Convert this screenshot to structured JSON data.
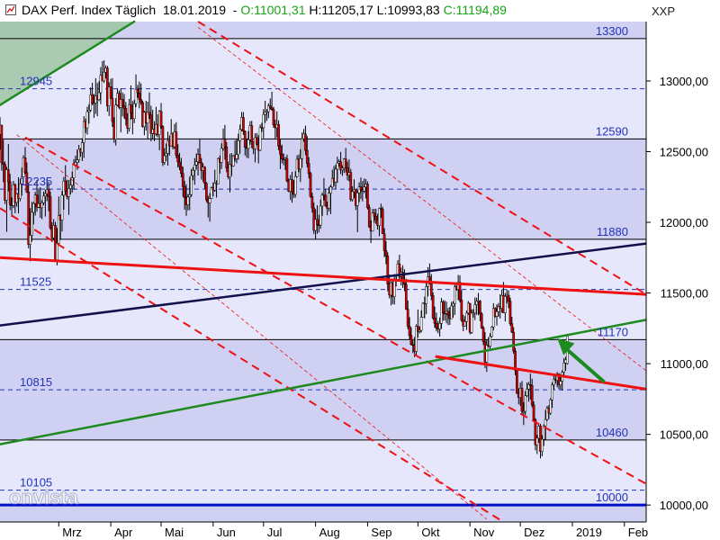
{
  "header": {
    "title": "DAX Perf. Index Täglich",
    "date": "18.01.2019",
    "open": "O:11001,31",
    "high": "H:11205,17",
    "low": "L:10993,83",
    "close": "C:11194,89",
    "symbol": "XXP"
  },
  "watermark": "onvista",
  "colors": {
    "background": "#ffffff",
    "band_dark": "#cfd0f2",
    "band_light": "#e6e7fa",
    "candle_up": "#ffffff",
    "candle_down": "#d00000",
    "resistance_red": "#ee1111",
    "channel_red": "#ee1111",
    "trend_green": "#1d8a1d",
    "trend_navy": "#10104a",
    "level_line": "#000000",
    "dashed_level": "#2233bb",
    "support_blue": "#0010c8",
    "arrow_green": "#1d8a1d"
  },
  "chart_data": {
    "type": "candlestick",
    "title": "DAX Perf. Index Täglich",
    "y_axis": {
      "min": 9880,
      "max": 13420,
      "ticks": [
        10000,
        10500,
        11000,
        11500,
        12000,
        12500,
        13000
      ],
      "tick_labels": [
        "10000,00",
        "10500,00",
        "11000,00",
        "11500,00",
        "12000,00",
        "12500,00",
        "13000,00"
      ]
    },
    "x_axis": {
      "labels": [
        "Mrz",
        "Apr",
        "Mai",
        "Jun",
        "Jul",
        "Aug",
        "Sep",
        "Okt",
        "Nov",
        "Dez",
        "2019",
        "Feb"
      ],
      "label_day_index": [
        45,
        76,
        106,
        137,
        167,
        198,
        229,
        259,
        290,
        320,
        351,
        382
      ],
      "visible_days": [
        10,
        395
      ]
    },
    "level_lines": [
      {
        "value": 13300,
        "label": "13300",
        "style": "solid"
      },
      {
        "value": 12945,
        "label": "12945",
        "style": "dashed"
      },
      {
        "value": 12590,
        "label": "12590",
        "style": "solid"
      },
      {
        "value": 12235,
        "label": "12235",
        "style": "dashed"
      },
      {
        "value": 11880,
        "label": "11880",
        "style": "solid"
      },
      {
        "value": 11525,
        "label": "11525",
        "style": "dashed"
      },
      {
        "value": 11170,
        "label": "11170",
        "style": "solid"
      },
      {
        "value": 10815,
        "label": "10815",
        "style": "dashed"
      },
      {
        "value": 10460,
        "label": "10460",
        "style": "solid"
      },
      {
        "value": 10105,
        "label": "10105",
        "style": "dashed"
      },
      {
        "value": 10000,
        "label": "10000",
        "style": "support"
      }
    ],
    "trend_lines": [
      {
        "name": "upper green",
        "color": "trend_green",
        "width": 2.5,
        "points": [
          [
            10,
            12830
          ],
          [
            90,
            13420
          ]
        ]
      },
      {
        "name": "lower green",
        "color": "trend_green",
        "width": 2.5,
        "points": [
          [
            10,
            10430
          ],
          [
            395,
            11310
          ]
        ]
      },
      {
        "name": "navy",
        "color": "trend_navy",
        "width": 2.5,
        "points": [
          [
            10,
            11270
          ],
          [
            395,
            11850
          ]
        ]
      },
      {
        "name": "red resistance",
        "color": "resistance_red",
        "width": 3,
        "points": [
          [
            10,
            11750
          ],
          [
            395,
            11490
          ]
        ]
      },
      {
        "name": "red short",
        "color": "resistance_red",
        "width": 3,
        "points": [
          [
            270,
            11050
          ],
          [
            395,
            10820
          ]
        ]
      }
    ],
    "channel_lines": [
      {
        "style": "dashed",
        "points": [
          [
            128,
            13420
          ],
          [
            395,
            11490
          ]
        ]
      },
      {
        "style": "dashed",
        "points": [
          [
            25,
            12600
          ],
          [
            395,
            10150
          ]
        ]
      },
      {
        "style": "dashed",
        "points": [
          [
            10,
            12100
          ],
          [
            310,
            9880
          ]
        ]
      },
      {
        "style": "thin",
        "points": [
          [
            128,
            13380
          ],
          [
            395,
            10950
          ]
        ]
      },
      {
        "style": "thin",
        "points": [
          [
            20,
            12620
          ],
          [
            300,
            9900
          ]
        ]
      }
    ],
    "arrow": {
      "from": [
        370,
        10870
      ],
      "to": [
        342,
        11180
      ]
    },
    "candles_compact": "10,12622,12744,12514,12688;11,12688,12688,12366,12421;12,12421,12584,12284,12409;13,12409,12431,12129,12156;14,12156,12393,11933,12372;15,12372,12554,12218,12287;16,12287,12343,12087,12126;17,12126,12176,12038,12119;18,12119,12292,12101,12266;19,12266,12276,12064,12141;20,12141,12208,12111,12202;21,12202,12318,12063,12168;22,12168,12309,12149,12273;23,12273,12387,12189,12321;24,12321,12474,12315,12457;25,12457,12533,12341,12352;26,12352,12424,12208,12215;27,12215,12278,11816,11844;28,11844,12101,11724,11908;29,11908,12145,11863,12071;30,12071,12145,11985,12133;31,12133,12215,12048,12193;32,12193,12299,12075,12107;33,12107,12240,12101,12132;34,12132,12248,12032,12103;35,12103,12156,12023,12138;36,12138,12218,12121,12186;37,12186,12230,12041,12203;38,12203,12311,12149,12233;39,12233,12286,12079,12181;40,12181,12218,11948,11962;41,11962,12001,11860,11891;42,11891,12023,11871,11978;43,11978,12003,11732,11735;44,11735,11960,11695,11852;45,11852,12183,11844,12049;46,12049,12057,11879,12016;47,12016,12222,11935,12192;48,12192,12321,12089,12292;49,12292,12404,12194,12222;50,12222,12301,12162,12182;51,12182,12300,12053,12239;52,12239,12316,12197,12263;53,12263,12358,12210,12314;54,12314,12447,12231,12407;55,12407,12471,12405,12424;56,12424,12514,12371,12441;57,12441,12548,12423,12516;58,12516,12525,12464,12496;59,12496,12595,12433,12563;60,12563,12751,12455,12713;61,12713,12735,12632,12668;62,12668,12818,12620,12783;63,12783,12836,12698,12794;64,12794,12955,12780,12901;65,12901,12987,12828,12841;66,12841,12909,12739,12843;67,12843,13019,12767,12893;68,12893,12986,12750,12868;69,12868,12998,12858,12917;70,12917,13098,12836,13040;71,13040,13140,12998,13000;72,13000,13146,12986,13062;73,13062,13110,13017,13091;74,13091,13107,12784,12824;75,12824,12991,12752,12958;76,12958,13015,12874,12878;77,12878,13020,12675,12714;78,12714,12744,12562,12588;79,12588,12878,12543,12829;80,12829,12946,12820,12912;81,12912,12932,12800,12813;82,12813,12949,12636,12869;83,12869,12919,12750,12824;84,12824,12908,12735,12807;85,12807,12852,12685,12731;86,12731,12772,12626,12665;87,12665,12873,12642,12832;88,12832,12968,12727,12774;89,12774,12858,12623,12734;90,12734,12867,12701,12840;91,12840,13046,12815,12942;92,12942,12972,12881,12915;93,12915,12996,12807,12869;94,12869,12983,12831,12847;95,12847,12861,12670,12677;96,12677,12790,12616,12778;97,12778,12860,12649,12702;98,12702,12853,12587,12778;99,12778,12919,12732,12760;100,12760,12825,12573,12629;101,12629,12796,12590,12659;102,12659,12715,12573,12626;103,12626,12817,12609,12693;104,12693,12764,12601,12620;105,12620,12795,12510,12785;106,12785,12844,12662,12678;107,12678,12686,12398,12423;108,12423,12524,12407,12471;109,12471,12558,12433,12488;110,12488,12641,12401,12577;111,12577,12615,12472,12541;112,12541,12730,12537,12625;113,12625,12636,12516,12535;114,12535,12696,12519,12640;115,12640,12708,12453,12476;116,12476,12553,12387,12427;117,12427,12491,12369,12395;118,12395,12456,12318,12346;119,12346,12393,12179,12252;120,12252,12294,12089,12174;121,12174,12269,12046,12124;122,12124,12200,12084,12179;123,12179,12323,12086,12195;124,12195,12378,12179,12331;125,12331,12391,12297,12368;126,12368,12454,12266,12406;127,12406,12487,12373,12429;128,12429,12522,12331,12481;129,12481,12591,12416,12423;130,12423,12455,12303,12367;131,12367,12418,12285,12390;132,12390,12397,12238,12275;133,12275,12285,12143,12159;134,12159,12188,12034,12137;135,12137,12207,12005,12169;136,12169,12253,12166,12244;137,12244,12283,12185,12228;138,12228,12372,12216,12278;139,12278,12298,12175,12272;140,12272,12458,12272,12451;141,12451,12473,12345,12424;142,12424,12559,12377,12523;143,12523,12663,12507,12588;144,12588,12689,12443,12533;145,12533,12567,12355,12384;146,12384,12429,12305,12321;147,12321,12485,12212,12409;148,12409,12490,12327,12398;149,12398,12477,12393,12470;150,12470,12579,12429,12450;151,12450,12589,12418,12480;152,12480,12627,12443,12578;153,12578,12692,12486,12658;154,12658,12781,12643,12742;155,12742,12780,12619,12644;156,12644,12650,12473,12530;157,12530,12593,12457,12523;158,12523,12646,12453,12585;159,12585,12715,12549,12684;160,12684,12718,12525,12572;161,12572,12575,12482,12521;162,12521,12630,12424,12599;163,12599,12632,12544,12553;164,12553,12617,12417,12510;165,12510,12692,12504,12672;166,12672,12704,12640,12669;167,12669,12801,12596,12763;168,12763,12860,12703,12781;169,12781,12801,12718,12783;170,12783,12842,12737,12823;171,12823,12876,12797,12809;172,12809,12924,12790,12798;173,12798,12817,12669,12689;174,12689,12727,12586,12669;175,12669,12785,12600,12692;176,12692,12721,12510,12539;177,12539,12585,12377,12482;178,12482,12550,12417,12447;179,12447,12488,12404,12443;180,12443,12462,12370,12452;181,12452,12479,12284,12293;182,12293,12310,12213,12219;183,12219,12335,12158,12303;184,12303,12357,12139,12216;185,12216,12299,12172,12198;186,12198,12362,12175,12324;187,12324,12474,12318,12446;188,12446,12480,12355,12377;189,12377,12517,12285,12451;190,12451,12635,12387,12591;191,12591,12660,12570,12625;192,12625,12684,12475,12509;193,12509,12610,12388,12417;194,12417,12461,12311,12345;195,12345,12358,12175,12183;196,12183,12210,12069,12102;197,12102,12141,11918,11943;198,11943,12093,11877,12020;199,12020,12120,11919,11983;200,11983,12053,11929,11980;201,11980,12162,11954,12115;202,12115,12210,12046,12193;203,12193,12313,12156,12192;204,12192,12237,12110,12117;205,12117,12147,12050,12099;206,12099,12251,12078,12206;207,12206,12265,12058,12250;208,12250,12372,12240,12311;209,12311,12398,12255,12286;210,12286,12407,12236,12376;211,12376,12464,12279,12419;212,12419,12445,12392,12429;213,12429,12498,12341,12370;214,12370,12404,12329,12383;215,12383,12454,12349,12448;216,12448,12526,12353,12386;217,12386,12429,12297,12333;218,12333,12445,12290,12353;219,12353,12378,12146,12161;220,12161,12255,12148,12217;221,12217,12304,12171,12230;222,12230,12239,12087,12119;223,12119,12228,11930,12208;224,12208,12282,12142,12251;225,12251,12317,12165,12230;226,12230,12292,12149,12221;227,12221,12310,12206,12250;228,12250,12306,12169,12270;229,12270,12290,12091,12104;230,12104,12127,11961,11968;231,11968,12014,11853,11938;232,11938,12095,11935,12066;233,12066,12096,11997,12043;234,12043,12095,11989,12019;235,12019,12061,11949,11976;236,11976,12104,11902,12099;237,12099,12132,12031,12092;238,12092,12111,11917,11919;239,11919,11958,11753,11799;240,11799,11867,11704,11763;241,11763,11788,11513,11563;242,11563,11631,11462,11485;243,11485,11582,11413,11573;244,11573,11601,11420,11473;245,11473,11633,11419,11589;246,11589,11632,11546,11595;247,11595,11733,11581,11706;248,11706,11771,11581,11617;249,11617,11679,11554,11646;250,11646,11696,11536,11585;251,11585,11668,11513,11561;252,11561,11602,11380,11385;253,11385,11447,11244,11265;254,11265,11329,11170,11199;255,11199,11258,11129,11136;256,11136,11165,11075,11130;257,11130,11190,11047,11085;258,11085,11279,11060,11265;259,11265,11383,11184,11227;260,11227,11263,11213,11236;261,11236,11377,11221,11328;262,11328,11434,11327,11428;263,11428,11475,11320,11424;264,11424,11577,11350,11545;265,11545,11683,11476,11615;266,11615,11709,11561,11566;267,11566,11634,11449,11482;268,11482,11505,11311,11323;269,11323,11404,11254,11285;270,11285,11362,11228,11253;271,11253,11302,11215,11245;272,11245,11327,11192,11285;273,11285,11465,11246,11436;274,11436,11450,11304,11358;275,11358,11448,11305,11355;276,11355,11439,11286,11370;277,11370,11395,11273,11344;278,11344,11402,11275,11318;279,11318,11438,11318,11409;280,11409,11442,11326,11426;281,11426,11560,11345,11544;282,11544,11572,11515,11525;283,11525,11628,11449,11575;284,11575,11625,11433,11450;285,11450,11520,11295,11309;286,11309,11346,11229,11267;287,11267,11337,11262,11298;288,11298,11377,11239,11358;289,11358,11443,11345,11427;290,11427,11430,11208,11222;291,11222,11384,11210,11358;292,11358,11386,11326,11358;293,11358,11468,11308,11418;294,11418,11467,11346,11441;295,11441,11500,11342,11444;296,11444,11450,11300,11352;297,11352,11364,11246,11252;298,11252,11266,11132,11155;299,11155,11223,10969,11011;300,11011,11168,10942,11131;301,11131,11187,11114,11123;302,11123,11216,11091,11192;303,11192,11267,11185,11260;304,11260,11428,11235,11390;305,11390,11400,11326,11335;306,11335,11420,11270,11368;307,11368,11429,11332,11405;308,11405,11491,11319,11391;309,11391,11524,11361,11482;310,11482,11578,11359,11360;311,11360,11500,11299,11476;312,11476,11523,11426,11484;313,11484,11519,11393,11442;314,11442,11467,11268,11284;315,11284,11332,11217,11223;316,11223,11259,11071,11089;317,11089,11112,10919,10952;318,10952,10965,10786,10790;319,10790,10826,10713,10761;320,10761,10866,10701,10826;321,10826,10877,10637,10663;322,10663,10728,10566,10663;323,10663,10806,10637,10773;324,10773,10867,10764,10820;325,10820,10870,10731,10852;326,10852,10930,10746,10846;327,10846,10893,10691,10708;328,10708,10733,10598,10604;329,10604,10614,10387,10426;330,10426,10497,10361,10473;331,10473,10571,10440,10558;332,10558,10574,10330,10379;333,10379,10495,10345,10465;334,10465,10571,10418,10560;335,10560,10672,10459,10605;336,10605,10702,10596,10684;337,10684,10706,10608,10650;338,10650,10757,10638,10744;339,10744,10868,10687,10849;340,10849,10925,10818,10890;341,10890,10926,10859,10882;342,10882,10942,10833,10927;343,10927,10932,10820,10850;344,10850,10925,10819,10876;345,10876,10954,10810,10940;346,10940,11039,10912,11005;347,11005,11049,10950,11027;348,11001,11205,10994,11195"
  }
}
